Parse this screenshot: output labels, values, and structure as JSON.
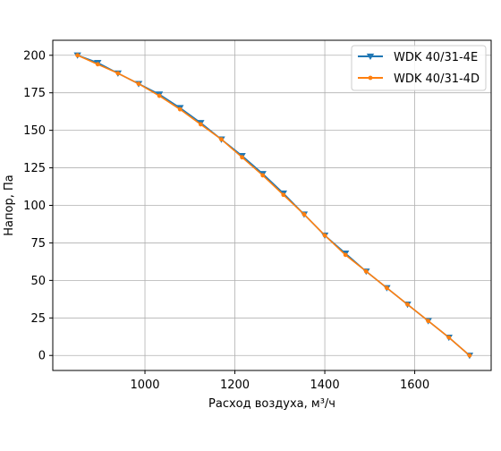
{
  "chart_data": {
    "type": "line",
    "title": "",
    "xlabel": "Расход воздуха, м³/ч",
    "ylabel": "Напор, Па",
    "xlim": [
      795,
      1770
    ],
    "ylim": [
      -10,
      210
    ],
    "xticks": [
      1000,
      1200,
      1400,
      1600
    ],
    "yticks": [
      0,
      25,
      50,
      75,
      100,
      125,
      150,
      175,
      200
    ],
    "grid": true,
    "legend_position": "top-right",
    "x": [
      850,
      895,
      940,
      986,
      1032,
      1078,
      1124,
      1170,
      1216,
      1262,
      1308,
      1354,
      1400,
      1446,
      1492,
      1538,
      1584,
      1630,
      1676,
      1722
    ],
    "series": [
      {
        "name": "WDK 40/31-4E",
        "color": "#1f77b4",
        "marker": "triangle-down",
        "values": [
          200,
          195,
          188,
          181,
          174,
          165,
          155,
          144,
          133,
          121,
          108,
          94,
          80,
          68,
          56,
          45,
          34,
          23,
          12,
          0
        ]
      },
      {
        "name": "WDK 40/31-4D",
        "color": "#ff7f0e",
        "marker": "point",
        "values": [
          200,
          194,
          188,
          181,
          173,
          164,
          154,
          144,
          132,
          120,
          107,
          94,
          80,
          67,
          56,
          45,
          34,
          23,
          12,
          0
        ]
      }
    ]
  }
}
